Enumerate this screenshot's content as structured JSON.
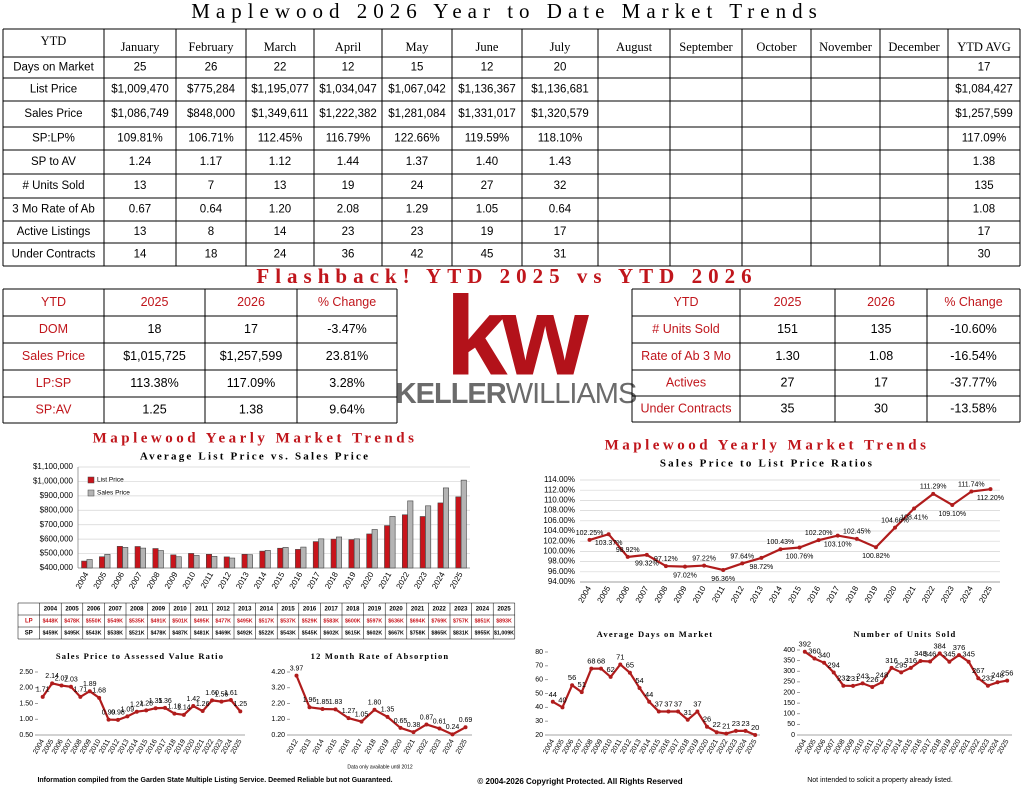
{
  "title": "Maplewood 2026 Year to Date Market Trends",
  "main_table": {
    "header": [
      "YTD",
      "January",
      "February",
      "March",
      "April",
      "May",
      "June",
      "July",
      "August",
      "September",
      "October",
      "November",
      "December",
      "YTD AVG"
    ],
    "rows": [
      {
        "label": "Days on Market",
        "values": [
          "25",
          "26",
          "22",
          "12",
          "15",
          "12",
          "20"
        ],
        "avg": "17"
      },
      {
        "label": "List Price",
        "values": [
          "$1,009,470",
          "$775,284",
          "$1,195,077",
          "$1,034,047",
          "$1,067,042",
          "$1,136,367",
          "$1,136,681"
        ],
        "avg": "$1,084,427"
      },
      {
        "label": "Sales Price",
        "values": [
          "$1,086,749",
          "$848,000",
          "$1,349,611",
          "$1,222,382",
          "$1,281,084",
          "$1,331,017",
          "$1,320,579"
        ],
        "avg": "$1,257,599"
      },
      {
        "label": "SP:LP%",
        "values": [
          "109.81%",
          "106.71%",
          "112.45%",
          "116.79%",
          "122.66%",
          "119.59%",
          "118.10%"
        ],
        "avg": "117.09%"
      },
      {
        "label": "SP to AV",
        "values": [
          "1.24",
          "1.17",
          "1.12",
          "1.44",
          "1.37",
          "1.40",
          "1.43"
        ],
        "avg": "1.38"
      },
      {
        "label": "# Units Sold",
        "values": [
          "13",
          "7",
          "13",
          "19",
          "24",
          "27",
          "32"
        ],
        "avg": "135"
      },
      {
        "label": "3 Mo Rate of Ab",
        "values": [
          "0.67",
          "0.64",
          "1.20",
          "2.08",
          "1.29",
          "1.05",
          "0.64"
        ],
        "avg": "1.08"
      },
      {
        "label": "Active Listings",
        "values": [
          "13",
          "8",
          "14",
          "23",
          "23",
          "19",
          "17"
        ],
        "avg": "17"
      },
      {
        "label": "Under Contracts",
        "values": [
          "14",
          "18",
          "24",
          "36",
          "42",
          "45",
          "31"
        ],
        "avg": "30"
      }
    ]
  },
  "flashback": {
    "title": "Flashback!  YTD 2025 vs YTD 2026",
    "left_table": {
      "header": [
        "YTD",
        "2025",
        "2026",
        "% Change"
      ],
      "rows": [
        [
          "DOM",
          "18",
          "17",
          "-3.47%"
        ],
        [
          "Sales Price",
          "$1,015,725",
          "$1,257,599",
          "23.81%"
        ],
        [
          "LP:SP",
          "113.38%",
          "117.09%",
          "3.28%"
        ],
        [
          "SP:AV",
          "1.25",
          "1.38",
          "9.64%"
        ]
      ]
    },
    "right_table": {
      "header": [
        "YTD",
        "2025",
        "2026",
        "% Change"
      ],
      "rows": [
        [
          "# Units Sold",
          "151",
          "135",
          "-10.60%"
        ],
        [
          "Rate of Ab 3 Mo",
          "1.30",
          "1.08",
          "-16.54%"
        ],
        [
          "Actives",
          "27",
          "17",
          "-37.77%"
        ],
        [
          "Under Contracts",
          "35",
          "30",
          "-13.58%"
        ]
      ]
    }
  },
  "logo": {
    "mark": "kw",
    "name_bold": "KELLER",
    "name_light": "WILLIAMS"
  },
  "chart_data": [
    {
      "type": "bar",
      "title": "Maplewood Yearly Market Trends",
      "subtitle": "Average List Price vs. Sales Price",
      "categories": [
        "2004",
        "2005",
        "2006",
        "2007",
        "2008",
        "2009",
        "2010",
        "2011",
        "2012",
        "2013",
        "2014",
        "2015",
        "2016",
        "2017",
        "2018",
        "2019",
        "2020",
        "2021",
        "2022",
        "2023",
        "2024",
        "2025"
      ],
      "series": [
        {
          "name": "List Price",
          "color": "#c8141b",
          "values": [
            448000,
            478000,
            550000,
            549000,
            535000,
            491000,
            501000,
            495000,
            477000,
            495000,
            517000,
            537000,
            529000,
            583000,
            600000,
            597000,
            636000,
            694000,
            769000,
            757000,
            851000,
            893000
          ],
          "value_labels": [
            "$448K",
            "$478K",
            "$550K",
            "$549K",
            "$535K",
            "$491K",
            "$501K",
            "$495K",
            "$477K",
            "$495K",
            "$517K",
            "$537K",
            "$529K",
            "$583K",
            "$600K",
            "$597K",
            "$636K",
            "$694K",
            "$769K",
            "$757K",
            "$851K",
            "$893K"
          ]
        },
        {
          "name": "Sales Price",
          "color": "#b4b4b4",
          "values": [
            459000,
            495000,
            543000,
            538000,
            521000,
            478000,
            487000,
            481000,
            469000,
            492000,
            522000,
            543000,
            545000,
            602000,
            615000,
            602000,
            667000,
            758000,
            865000,
            831000,
            955000,
            1009000
          ],
          "value_labels": [
            "$459K",
            "$495K",
            "$543K",
            "$538K",
            "$521K",
            "$478K",
            "$487K",
            "$481K",
            "$469K",
            "$492K",
            "$522K",
            "$543K",
            "$545K",
            "$602K",
            "$615K",
            "$602K",
            "$667K",
            "$758K",
            "$865K",
            "$831K",
            "$955K",
            "$1,009K"
          ]
        }
      ],
      "table_labels": [
        "LP",
        "SP"
      ],
      "ylim": [
        400000,
        1100000
      ],
      "yticks": [
        {
          "value": 400000,
          "label": "$400,000"
        },
        {
          "value": 500000,
          "label": "$500,000"
        },
        {
          "value": 600000,
          "label": "$600,000"
        },
        {
          "value": 700000,
          "label": "$700,000"
        },
        {
          "value": 800000,
          "label": "$800,000"
        },
        {
          "value": 900000,
          "label": "$900,000"
        },
        {
          "value": 1000000,
          "label": "$1,000,000"
        },
        {
          "value": 1100000,
          "label": "$1,100,000"
        }
      ],
      "grid": true,
      "legend": "top-left"
    },
    {
      "type": "line",
      "title": "Maplewood Yearly Market Trends",
      "subtitle": "Sales Price to List Price Ratios",
      "categories": [
        "2004",
        "2005",
        "2006",
        "2007",
        "2008",
        "2009",
        "2010",
        "2011",
        "2012",
        "2013",
        "2014",
        "2015",
        "2016",
        "2017",
        "2018",
        "2019",
        "2020",
        "2021",
        "2022",
        "2023",
        "2024",
        "2025"
      ],
      "color": "#b01c1c",
      "values": [
        102.25,
        103.37,
        98.92,
        99.32,
        97.12,
        97.02,
        97.22,
        96.36,
        97.64,
        98.72,
        100.43,
        100.76,
        102.2,
        103.1,
        102.45,
        100.82,
        104.66,
        108.41,
        111.29,
        109.1,
        111.74,
        112.2
      ],
      "value_labels": [
        "102.25%",
        "103.37%",
        "98.92%",
        "99.32%",
        "97.12%",
        "97.02%",
        "97.22%",
        "96.36%",
        "97.64%",
        "98.72%",
        "100.43%",
        "100.76%",
        "102.20%",
        "103.10%",
        "102.45%",
        "100.82%",
        "104.66%",
        "108.41%",
        "111.29%",
        "109.10%",
        "111.74%",
        "112.20%"
      ],
      "ylim": [
        94,
        114
      ],
      "yticks": [
        {
          "value": 94,
          "label": "94.00%"
        },
        {
          "value": 96,
          "label": "96.00%"
        },
        {
          "value": 98,
          "label": "98.00%"
        },
        {
          "value": 100,
          "label": "100.00%"
        },
        {
          "value": 102,
          "label": "102.00%"
        },
        {
          "value": 104,
          "label": "104.00%"
        },
        {
          "value": 106,
          "label": "106.00%"
        },
        {
          "value": 108,
          "label": "108.00%"
        },
        {
          "value": 110,
          "label": "110.00%"
        },
        {
          "value": 112,
          "label": "112.00%"
        },
        {
          "value": 114,
          "label": "114.00%"
        }
      ],
      "grid": true
    },
    {
      "type": "line",
      "title": "Sales Price to Assessed Value Ratio",
      "categories": [
        "2004",
        "2005",
        "2006",
        "2007",
        "2008",
        "2009",
        "2010",
        "2011",
        "2012",
        "2013",
        "2014",
        "2015",
        "2016",
        "2017",
        "2018",
        "2019",
        "2020",
        "2021",
        "2022",
        "2023",
        "2024",
        "2025"
      ],
      "color": "#b01c1c",
      "values": [
        1.71,
        2.14,
        2.07,
        2.03,
        1.71,
        1.89,
        1.68,
        0.99,
        0.98,
        1.09,
        1.24,
        1.28,
        1.35,
        1.36,
        1.18,
        1.14,
        1.42,
        1.26,
        1.6,
        1.56,
        1.61,
        1.25
      ],
      "value_labels": [
        "1.71",
        "2.14",
        "2.07",
        "2.03",
        "1.71",
        "1.89",
        "1.68",
        "0.99",
        "0.98",
        "1.09",
        "1.24",
        "1.28",
        "1.35",
        "1.36",
        "1.18",
        "1.14",
        "1.42",
        "1.26",
        "1.60",
        "1.56",
        "1.61",
        "1.25"
      ],
      "ylim": [
        0.5,
        2.5
      ],
      "yticks": [
        {
          "value": 0.5,
          "label": "0.50"
        },
        {
          "value": 1,
          "label": "1.00"
        },
        {
          "value": 1.5,
          "label": "1.50"
        },
        {
          "value": 2,
          "label": "2.00"
        },
        {
          "value": 2.5,
          "label": "2.50"
        }
      ],
      "grid": false
    },
    {
      "type": "line",
      "title": "12 Month Rate of Absorption",
      "note": "Data only available until 2012",
      "categories": [
        "2012",
        "2013",
        "2014",
        "2015",
        "2016",
        "2017",
        "2018",
        "2019",
        "2020",
        "2021",
        "2022",
        "2023",
        "2024",
        "2025"
      ],
      "color": "#b01c1c",
      "values": [
        3.97,
        1.96,
        1.85,
        1.83,
        1.27,
        1.05,
        1.8,
        1.35,
        0.65,
        0.38,
        0.87,
        0.61,
        0.24,
        0.69
      ],
      "value_labels": [
        "3.97",
        "1.96",
        "1.85",
        "1.83",
        "1.27",
        "1.05",
        "1.80",
        "1.35",
        "0.65",
        "0.38",
        "0.87",
        "0.61",
        "0.24",
        "0.69"
      ],
      "ylim": [
        0.2,
        4.2
      ],
      "yticks": [
        {
          "value": 0.2,
          "label": "0.20"
        },
        {
          "value": 1.2,
          "label": "1.20"
        },
        {
          "value": 2.2,
          "label": "2.20"
        },
        {
          "value": 3.2,
          "label": "3.20"
        },
        {
          "value": 4.2,
          "label": "4.20"
        }
      ],
      "grid": false
    },
    {
      "type": "line",
      "title": "Average Days on Market",
      "categories": [
        "2004",
        "2005",
        "2006",
        "2007",
        "2008",
        "2009",
        "2010",
        "2011",
        "2012",
        "2013",
        "2014",
        "2015",
        "2016",
        "2017",
        "2018",
        "2019",
        "2020",
        "2021",
        "2022",
        "2023",
        "2024",
        "2025"
      ],
      "color": "#b01c1c",
      "values": [
        44,
        40,
        56,
        51,
        68,
        68,
        62,
        71,
        65,
        54,
        44,
        37,
        37,
        37,
        31,
        37,
        26,
        22,
        21,
        23,
        23,
        20
      ],
      "ylim": [
        20,
        80
      ],
      "yticks": [
        20,
        30,
        40,
        50,
        60,
        70,
        80
      ],
      "grid": false
    },
    {
      "type": "line",
      "title": "Number of Units Sold",
      "categories": [
        "2004",
        "2005",
        "2006",
        "2007",
        "2008",
        "2009",
        "2010",
        "2011",
        "2012",
        "2013",
        "2014",
        "2015",
        "2016",
        "2017",
        "2018",
        "2019",
        "2020",
        "2021",
        "2022",
        "2023",
        "2024",
        "2025"
      ],
      "color": "#b01c1c",
      "values": [
        392,
        360,
        340,
        294,
        232,
        231,
        243,
        226,
        248,
        316,
        295,
        316,
        348,
        346,
        384,
        345,
        376,
        345,
        267,
        232,
        248,
        256
      ],
      "ylim": [
        0,
        400
      ],
      "yticks": [
        0,
        50,
        100,
        150,
        200,
        250,
        300,
        350,
        400
      ],
      "grid": false
    }
  ],
  "footer": {
    "left": "Information compiled from the Garden State Multiple Listing Service.  Deemed Reliable but not Guaranteed.",
    "center": "© 2004-2026 Copyright Protected.  All Rights Reserved",
    "right": "Not intended to solicit a property already listed."
  }
}
